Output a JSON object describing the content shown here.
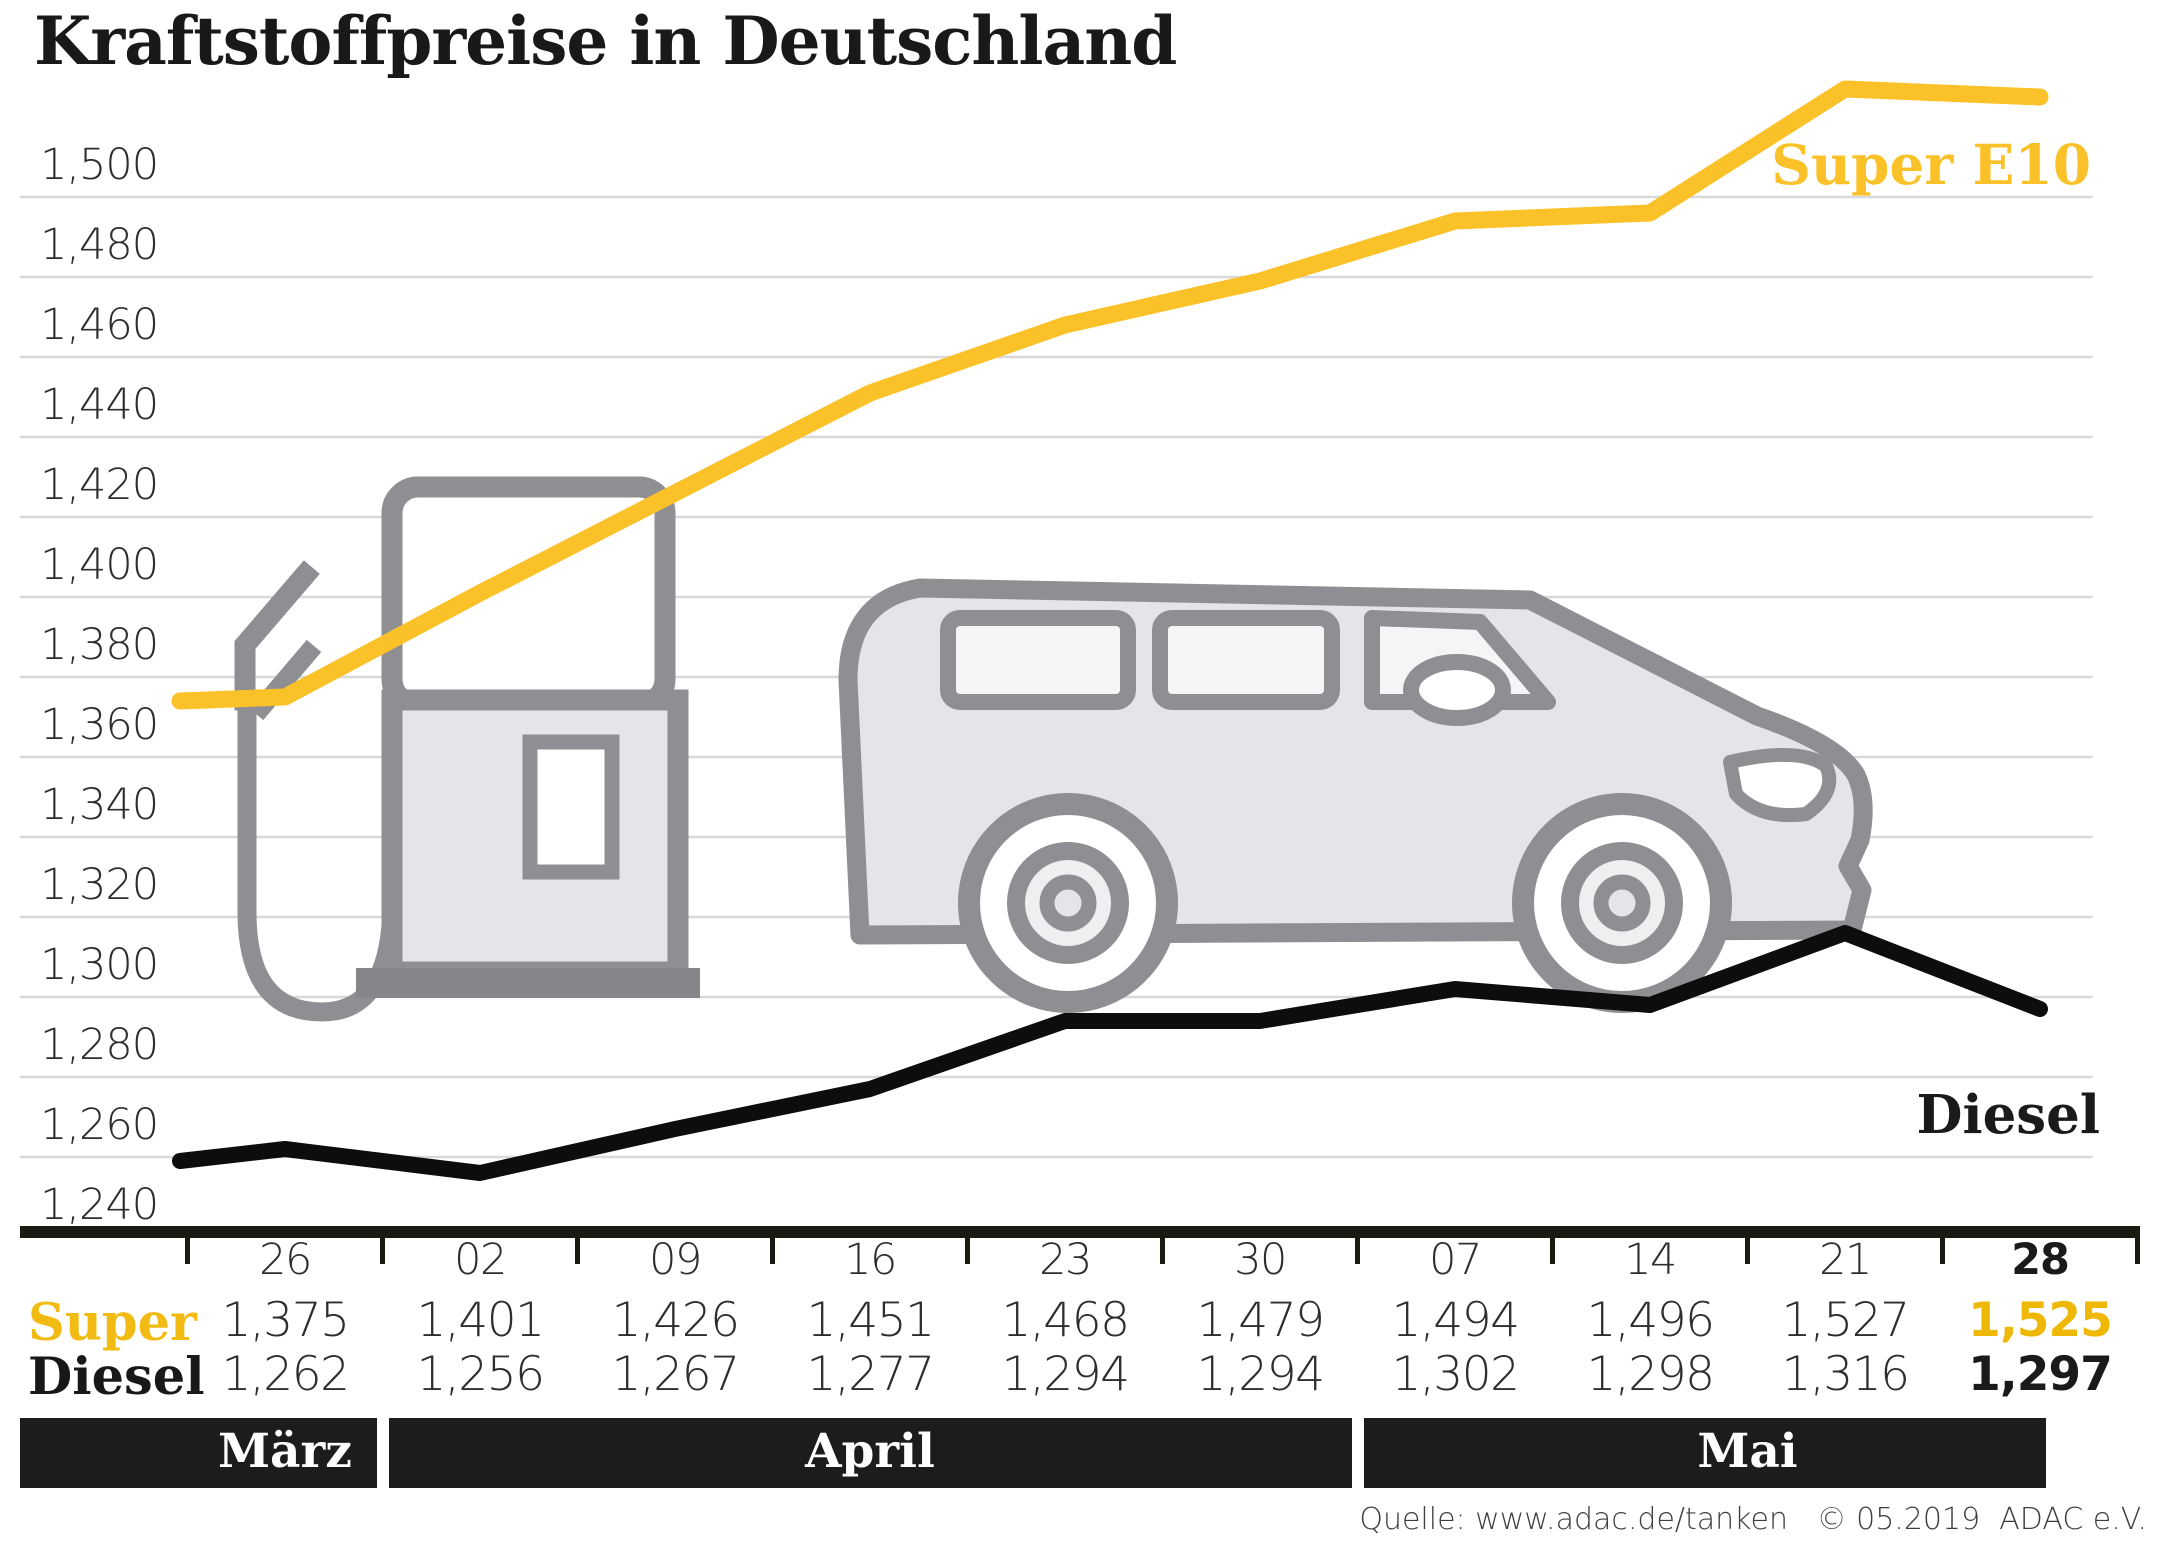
{
  "title": "Kraftstoffpreise in Deutschland",
  "source": "Quelle: www.adac.de/tanken   © 05.2019  ADAC e.V.",
  "colors": {
    "super_yellow": "#FBC128",
    "diesel_black": "#0d0d0d",
    "gridline": "#d9d9d9",
    "axis": "#1a1a13",
    "band_bg": "#1c1c1a",
    "icon_stroke": "#8f8f93",
    "icon_fill": "#e3e5e8",
    "value_text": "#2e2e2e"
  },
  "chart_data": {
    "type": "line",
    "title": "Kraftstoffpreise in Deutschland",
    "categories": [
      "26",
      "02",
      "09",
      "16",
      "23",
      "30",
      "07",
      "14",
      "21",
      "28"
    ],
    "months": [
      {
        "label": "März",
        "cols": [
          0,
          0
        ]
      },
      {
        "label": "April",
        "cols": [
          1,
          5
        ]
      },
      {
        "label": "Mai",
        "cols": [
          6,
          9
        ]
      }
    ],
    "series": [
      {
        "name": "Super E10",
        "row_label": "Super",
        "color": "#FBC128",
        "lead_in": 1.374,
        "values": [
          1.375,
          1.401,
          1.426,
          1.451,
          1.468,
          1.479,
          1.494,
          1.496,
          1.527,
          1.525
        ]
      },
      {
        "name": "Diesel",
        "row_label": "Diesel",
        "color": "#0d0d0d",
        "lead_in": 1.259,
        "values": [
          1.262,
          1.256,
          1.267,
          1.277,
          1.294,
          1.294,
          1.302,
          1.298,
          1.316,
          1.297
        ]
      }
    ],
    "ylim": [
      1.24,
      1.5
    ],
    "ytick_step": 0.02,
    "ytick_labels": [
      "1,240",
      "1,260",
      "1,280",
      "1,300",
      "1,320",
      "1,340",
      "1,360",
      "1,380",
      "1,400",
      "1,420",
      "1,440",
      "1,460",
      "1,480",
      "1,500"
    ],
    "grid": true,
    "legend_position": "labels-at-line-ends"
  }
}
